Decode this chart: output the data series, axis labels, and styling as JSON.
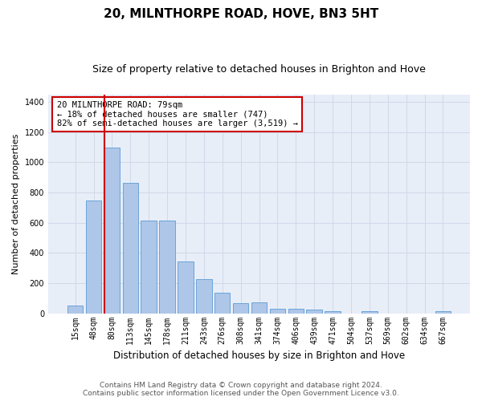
{
  "title": "20, MILNTHORPE ROAD, HOVE, BN3 5HT",
  "subtitle": "Size of property relative to detached houses in Brighton and Hove",
  "xlabel": "Distribution of detached houses by size in Brighton and Hove",
  "ylabel": "Number of detached properties",
  "bar_labels": [
    "15sqm",
    "48sqm",
    "80sqm",
    "113sqm",
    "145sqm",
    "178sqm",
    "211sqm",
    "243sqm",
    "276sqm",
    "308sqm",
    "341sqm",
    "374sqm",
    "406sqm",
    "439sqm",
    "471sqm",
    "504sqm",
    "537sqm",
    "569sqm",
    "602sqm",
    "634sqm",
    "667sqm"
  ],
  "bar_values": [
    50,
    750,
    1100,
    865,
    615,
    615,
    345,
    225,
    135,
    65,
    70,
    30,
    30,
    22,
    15,
    0,
    12,
    0,
    0,
    0,
    12
  ],
  "bar_color": "#aec6e8",
  "bar_edge_color": "#5b9bd5",
  "property_bar_index": 2,
  "vline_color": "#cc0000",
  "annotation_text": "20 MILNTHORPE ROAD: 79sqm\n← 18% of detached houses are smaller (747)\n82% of semi-detached houses are larger (3,519) →",
  "annotation_box_color": "#cc0000",
  "ylim": [
    0,
    1450
  ],
  "yticks": [
    0,
    200,
    400,
    600,
    800,
    1000,
    1200,
    1400
  ],
  "grid_color": "#d0d8e8",
  "background_color": "#e8eef8",
  "footer_line1": "Contains HM Land Registry data © Crown copyright and database right 2024.",
  "footer_line2": "Contains public sector information licensed under the Open Government Licence v3.0.",
  "title_fontsize": 11,
  "subtitle_fontsize": 9,
  "xlabel_fontsize": 8.5,
  "ylabel_fontsize": 8,
  "tick_fontsize": 7,
  "annotation_fontsize": 7.5,
  "footer_fontsize": 6.5
}
